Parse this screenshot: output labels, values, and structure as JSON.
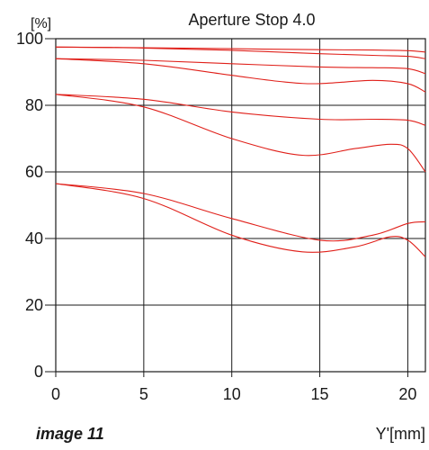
{
  "chart_data": {
    "type": "line",
    "title": "Aperture Stop 4.0",
    "ylabel": "[%]",
    "xlabel": "Y'[mm]",
    "caption": "image 11",
    "xlim": [
      0,
      21
    ],
    "ylim": [
      0,
      100
    ],
    "x_ticks": [
      0,
      5,
      10,
      15,
      20
    ],
    "y_ticks": [
      0,
      20,
      40,
      60,
      80,
      100
    ],
    "grid": true,
    "line_color": "#e0201a",
    "series": [
      {
        "x": [
          0,
          5,
          10,
          15,
          18,
          20,
          21
        ],
        "values": [
          97.5,
          97.3,
          97,
          96.7,
          96.6,
          96.4,
          96
        ]
      },
      {
        "x": [
          0,
          5,
          10,
          15,
          18,
          20,
          21
        ],
        "values": [
          97.5,
          97.2,
          96.5,
          95.5,
          95,
          94.7,
          94
        ]
      },
      {
        "x": [
          0,
          5,
          10,
          15,
          18,
          20,
          21
        ],
        "values": [
          94,
          93.5,
          92.5,
          91.5,
          91.3,
          91,
          89.5
        ]
      },
      {
        "x": [
          0,
          5,
          10,
          13,
          15,
          18,
          20,
          21
        ],
        "values": [
          94,
          92.5,
          89,
          87,
          86.5,
          87.5,
          86.5,
          84
        ]
      },
      {
        "x": [
          0,
          5,
          10,
          15,
          18,
          20,
          21
        ],
        "values": [
          83.3,
          81.8,
          78,
          75.8,
          75.8,
          75.5,
          74
        ]
      },
      {
        "x": [
          0,
          5,
          10,
          14,
          17,
          19,
          20,
          21
        ],
        "values": [
          83.3,
          79.5,
          70,
          65,
          67,
          68.3,
          67,
          60
        ]
      },
      {
        "x": [
          0,
          5,
          10,
          15,
          18,
          20,
          21
        ],
        "values": [
          56.5,
          53.5,
          46,
          39.5,
          41,
          44.5,
          45
        ]
      },
      {
        "x": [
          0,
          5,
          10,
          14,
          17,
          19,
          20,
          21
        ],
        "values": [
          56.5,
          52,
          41,
          36,
          37.5,
          40.5,
          39.5,
          34.5
        ]
      }
    ]
  }
}
